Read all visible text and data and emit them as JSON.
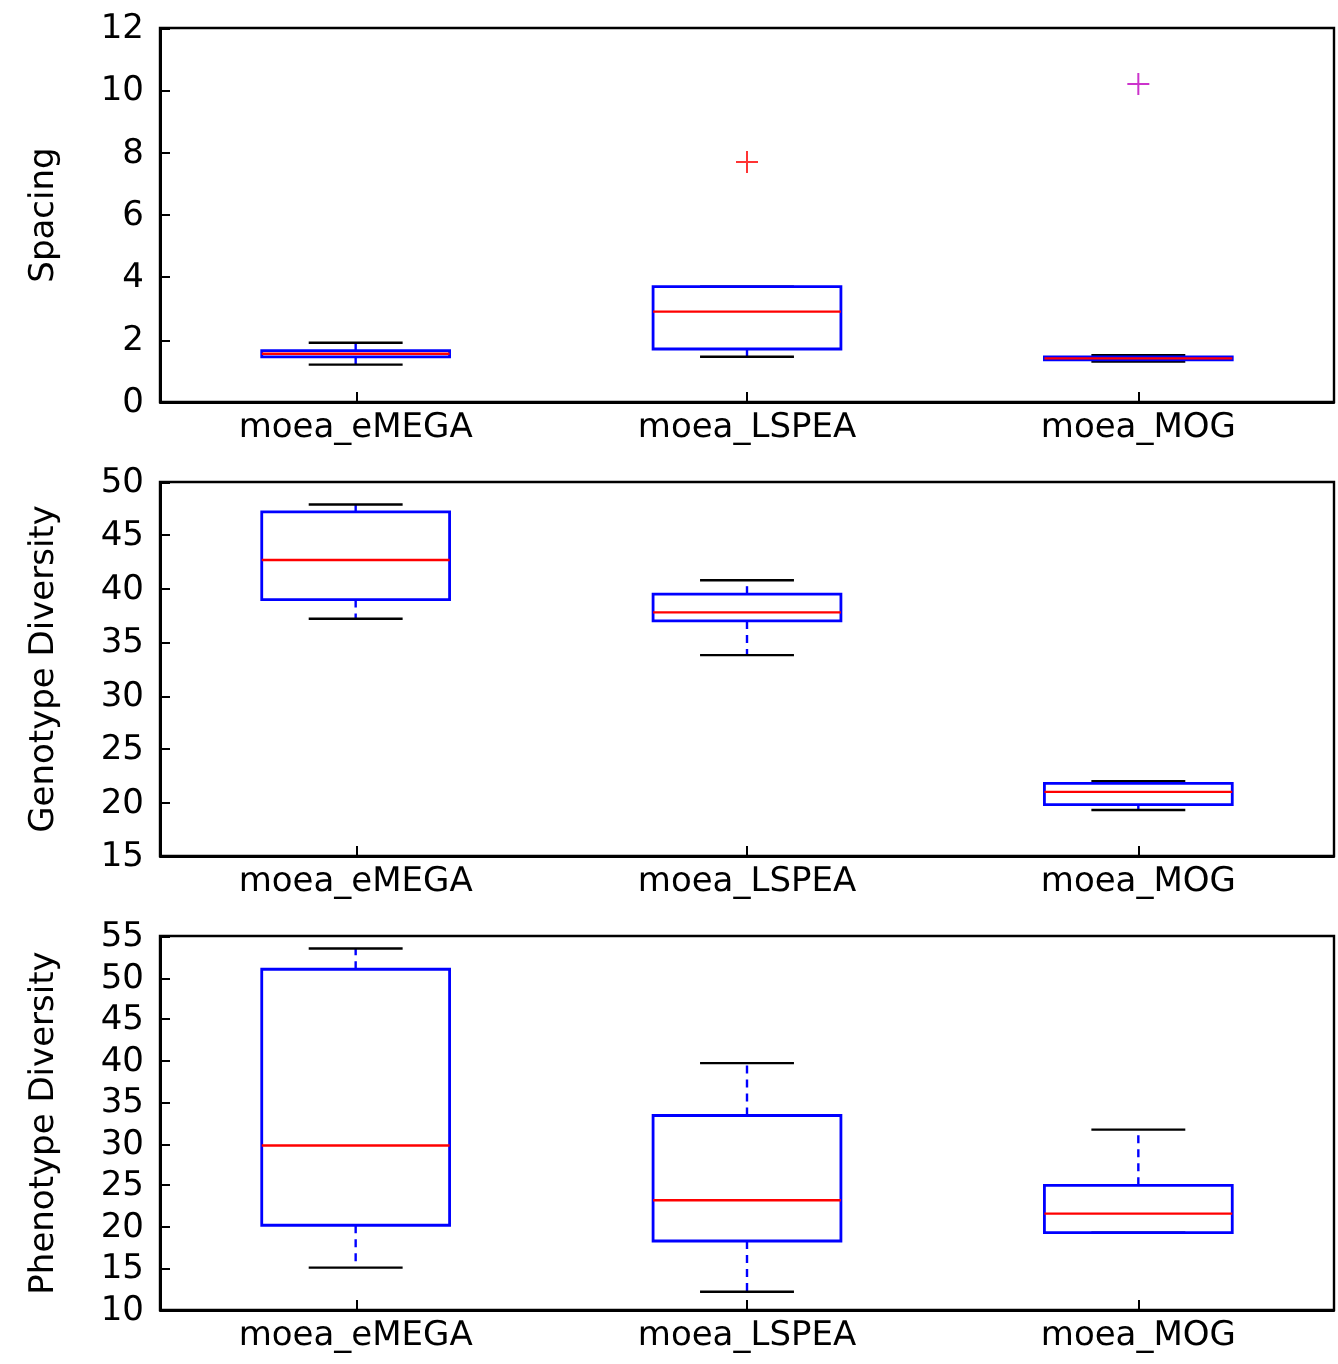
{
  "chart_data": [
    {
      "type": "box",
      "ylabel": "Spacing",
      "categories": [
        "moea_eMEGA",
        "moea_LSPEA",
        "moea_MOG"
      ],
      "ylim": [
        0,
        12
      ],
      "yticks": [
        0,
        2,
        4,
        6,
        8,
        10,
        12
      ],
      "grid": false,
      "series": [
        {
          "color": "#0000ff",
          "boxes": [
            {
              "low": 1.2,
              "q1": 1.45,
              "median": 1.55,
              "q3": 1.65,
              "high": 1.9
            },
            {
              "low": 1.45,
              "q1": 1.7,
              "median": 2.9,
              "q3": 3.7,
              "high": 3.7
            },
            {
              "low": 1.3,
              "q1": 1.35,
              "median": 1.4,
              "q3": 1.45,
              "high": 1.5
            }
          ]
        },
        {
          "type": "scatter",
          "marker": "cross",
          "x": [
            "moea_LSPEA",
            "moea_MOG"
          ],
          "values": [
            7.7,
            10.2
          ],
          "colors": [
            "#ff0000",
            "#bf00bf"
          ]
        }
      ]
    },
    {
      "type": "box",
      "ylabel": "Genotype Diversity",
      "categories": [
        "moea_eMEGA",
        "moea_LSPEA",
        "moea_MOG"
      ],
      "ylim": [
        15,
        50
      ],
      "yticks": [
        15,
        20,
        25,
        30,
        35,
        40,
        45,
        50
      ],
      "grid": false,
      "series": [
        {
          "color": "#0000ff",
          "boxes": [
            {
              "low": 37.2,
              "q1": 39,
              "median": 42.7,
              "q3": 47.2,
              "high": 47.9
            },
            {
              "low": 33.8,
              "q1": 37,
              "median": 37.8,
              "q3": 39.5,
              "high": 40.8
            },
            {
              "low": 19.3,
              "q1": 19.8,
              "median": 21,
              "q3": 21.8,
              "high": 22
            }
          ]
        }
      ]
    },
    {
      "type": "box",
      "ylabel": "Phenotype Diversity",
      "categories": [
        "moea_eMEGA",
        "moea_LSPEA",
        "moea_MOG"
      ],
      "ylim": [
        10,
        55
      ],
      "yticks": [
        10,
        15,
        20,
        25,
        30,
        35,
        40,
        45,
        50,
        55
      ],
      "grid": false,
      "series": [
        {
          "color": "#0000ff",
          "boxes": [
            {
              "low": 15.1,
              "q1": 20.2,
              "median": 29.8,
              "q3": 51,
              "high": 53.5
            },
            {
              "low": 12.2,
              "q1": 18.3,
              "median": 23.2,
              "q3": 33.4,
              "high": 39.7
            },
            {
              "low": 19.3,
              "q1": 19.3,
              "median": 21.6,
              "q3": 25,
              "high": 31.7
            }
          ]
        }
      ]
    }
  ]
}
